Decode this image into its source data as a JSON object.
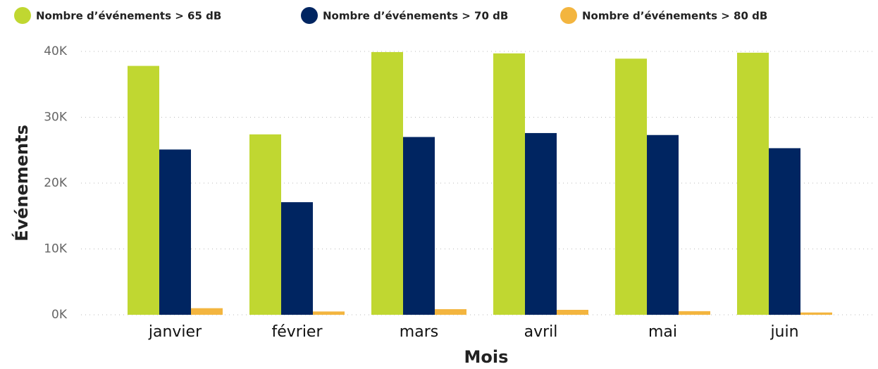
{
  "chart_data": {
    "type": "bar",
    "x_label": "Mois",
    "y_label": "Événements",
    "categories": [
      "janvier",
      "février",
      "mars",
      "avril",
      "mai",
      "juin"
    ],
    "series": [
      {
        "name": "Nombre d’événements > 65 dB",
        "color": "#c0d731",
        "values": [
          37800,
          27400,
          39900,
          39700,
          38900,
          39800
        ]
      },
      {
        "name": "Nombre d’événements > 70 dB",
        "color": "#002561",
        "values": [
          25100,
          17100,
          27000,
          27600,
          27300,
          25300
        ]
      },
      {
        "name": "Nombre d’événements > 80 dB",
        "color": "#f3b53f",
        "values": [
          1000,
          500,
          850,
          750,
          550,
          350
        ]
      }
    ],
    "ylim": [
      0,
      40000
    ],
    "yticks": [
      {
        "value": 0,
        "label": "0K"
      },
      {
        "value": 10000,
        "label": "10K"
      },
      {
        "value": 20000,
        "label": "20K"
      },
      {
        "value": 30000,
        "label": "30K"
      },
      {
        "value": 40000,
        "label": "40K"
      }
    ],
    "grid": true
  }
}
